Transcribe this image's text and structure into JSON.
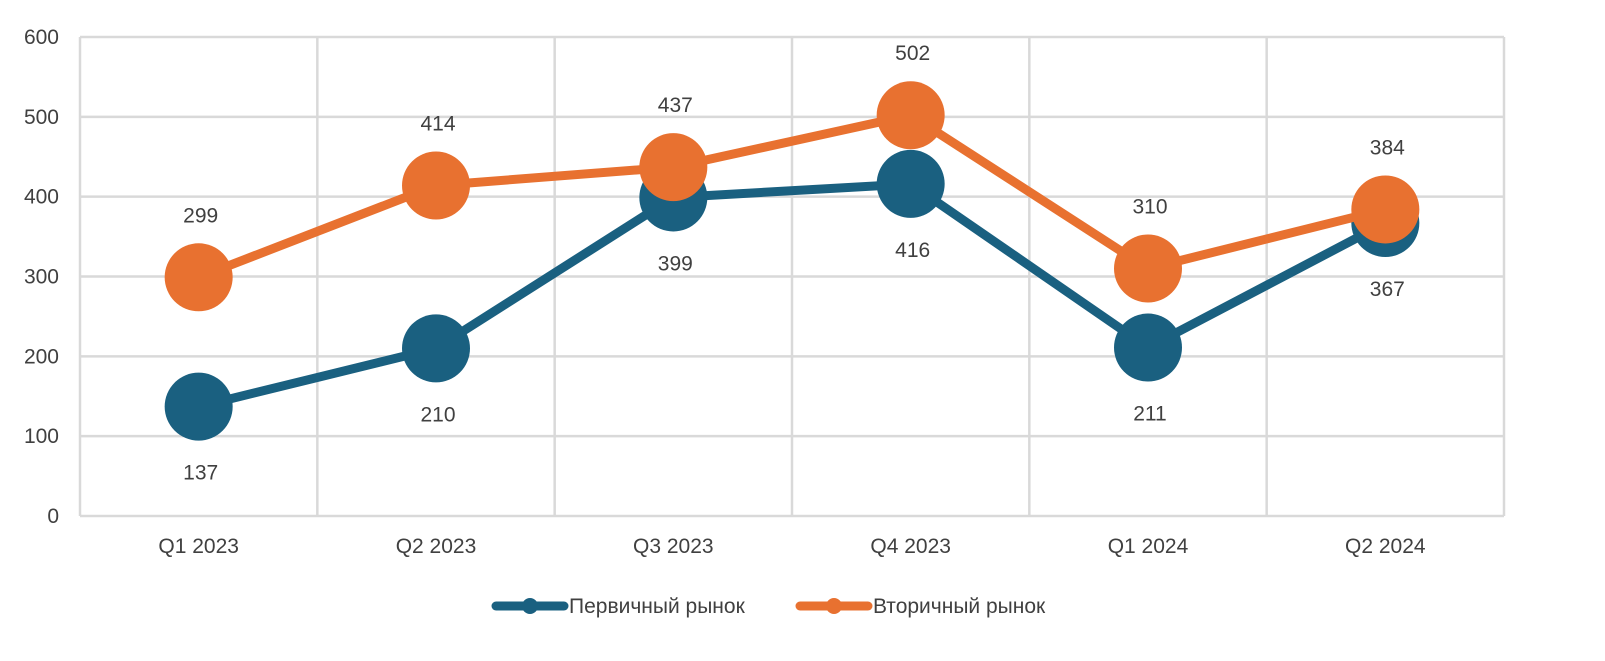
{
  "chart_data": {
    "type": "line",
    "categories": [
      "Q1 2023",
      "Q2 2023",
      "Q3 2023",
      "Q4 2023",
      "Q1 2024",
      "Q2 2024"
    ],
    "series": [
      {
        "name": "Первичный рынок",
        "values": [
          137,
          210,
          399,
          416,
          211,
          367
        ],
        "color": "#1A6080"
      },
      {
        "name": "Вторичный рынок",
        "values": [
          299,
          414,
          437,
          502,
          310,
          384
        ],
        "color": "#E87130"
      }
    ],
    "y_ticks": [
      "0",
      "100",
      "200",
      "300",
      "400",
      "500",
      "600"
    ],
    "ylim": [
      0,
      600
    ],
    "grid": true,
    "legend_position": "bottom",
    "data_labels": {
      "primary": [
        "137",
        "210",
        "399",
        "416",
        "211",
        "367"
      ],
      "secondary": [
        "299",
        "414",
        "437",
        "502",
        "310",
        "384"
      ]
    }
  }
}
